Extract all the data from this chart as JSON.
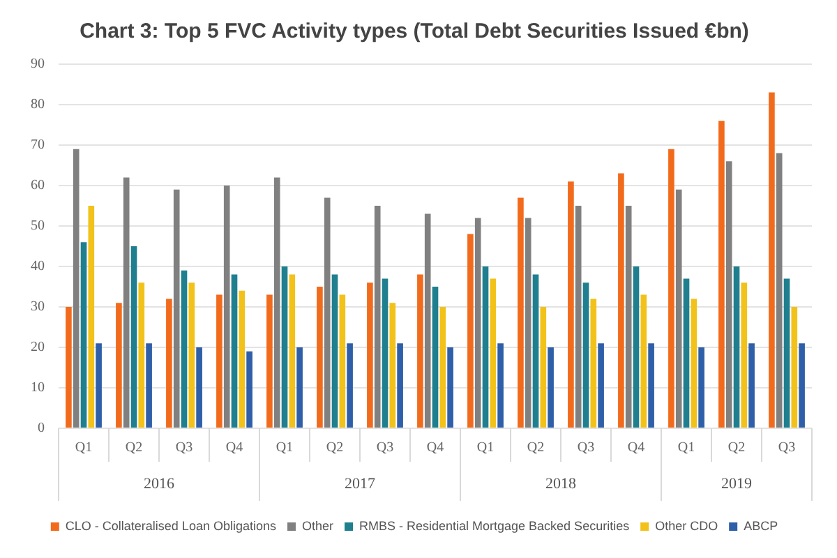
{
  "chart_data": {
    "type": "bar",
    "title": "Chart 3: Top 5 FVC Activity types (Total Debt Securities Issued €bn)",
    "categories": [
      "Q1",
      "Q2",
      "Q3",
      "Q4",
      "Q1",
      "Q2",
      "Q3",
      "Q4",
      "Q1",
      "Q2",
      "Q3",
      "Q4",
      "Q1",
      "Q2",
      "Q3"
    ],
    "annotations": [
      "2016",
      "2017",
      "2018",
      "2019"
    ],
    "series": [
      {
        "name": "CLO - Collateralised Loan Obligations",
        "color": "#f26b1d",
        "values": [
          30,
          31,
          32,
          33,
          33,
          35,
          36,
          38,
          48,
          57,
          61,
          63,
          69,
          76,
          83
        ]
      },
      {
        "name": "Other",
        "color": "#808080",
        "values": [
          69,
          62,
          59,
          60,
          62,
          57,
          55,
          53,
          52,
          52,
          55,
          55,
          59,
          66,
          68
        ]
      },
      {
        "name": "RMBS - Residential Mortgage Backed Securities",
        "color": "#1f7f8f",
        "values": [
          46,
          45,
          39,
          38,
          40,
          38,
          37,
          35,
          40,
          38,
          36,
          40,
          37,
          40,
          37
        ]
      },
      {
        "name": "Other CDO",
        "color": "#f2c21a",
        "values": [
          55,
          36,
          36,
          34,
          38,
          33,
          31,
          30,
          37,
          30,
          32,
          33,
          32,
          36,
          30
        ]
      },
      {
        "name": "ABCP",
        "color": "#2e5fa8",
        "values": [
          21,
          21,
          20,
          19,
          20,
          21,
          21,
          20,
          21,
          20,
          21,
          21,
          20,
          21,
          21
        ]
      }
    ],
    "ylim": [
      0,
      90
    ],
    "yticks": [
      0,
      10,
      20,
      30,
      40,
      50,
      60,
      70,
      80,
      90
    ],
    "grid": "y",
    "legend": "bottom"
  }
}
